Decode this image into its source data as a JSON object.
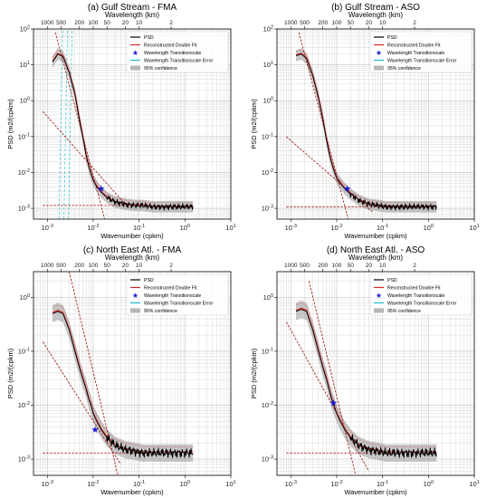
{
  "chart_data": [
    {
      "type": "line",
      "title": "(a) Gulf Stream - FMA",
      "xlabel": "Wavenumber (cpkm)",
      "ylabel": "PSD (m2/(cpkm)",
      "top_xlabel": "Wavelength (km)",
      "top_tick_labels": [
        "1000",
        "500",
        "200",
        "100",
        "50",
        "20",
        "10",
        "2"
      ],
      "top_tick_values_km": [
        1000,
        500,
        200,
        100,
        50,
        20,
        10,
        2
      ],
      "xscale": "log",
      "yscale": "log",
      "xlim": [
        0.0005,
        10
      ],
      "ylim": [
        0.0005,
        100
      ],
      "x_tick_labels": [
        "10^-3",
        "10^-2",
        "10^-1",
        "10^0",
        "10^1"
      ],
      "y_tick_labels": [
        "10^-3",
        "10^-2",
        "10^-1",
        "10^0",
        "10^1",
        "10^2"
      ],
      "grid": true,
      "legend": [
        "PSD",
        "Reconstructed Double Fit",
        "Wavelength Transitionscale",
        "Wavelength Transitionscale Error",
        "95% confidence"
      ],
      "legend_position": "top-right",
      "spectrum": {
        "x": [
          0.0013,
          0.0017,
          0.0022,
          0.003,
          0.004,
          0.005,
          0.006,
          0.007,
          0.008,
          0.009,
          0.01,
          0.012,
          0.015,
          0.02,
          0.03,
          0.05,
          0.08,
          0.12,
          0.2,
          0.4,
          0.8,
          1.5
        ],
        "y": [
          12,
          20,
          17,
          6,
          1.5,
          0.3,
          0.09,
          0.03,
          0.015,
          0.009,
          0.006,
          0.004,
          0.0028,
          0.002,
          0.0015,
          0.0013,
          0.0012,
          0.0012,
          0.0011,
          0.0011,
          0.0011,
          0.0011
        ]
      },
      "fit_steep": {
        "x": [
          0.0015,
          0.04
        ],
        "y": [
          80,
          1e-05
        ]
      },
      "fit_shallow": {
        "x": [
          0.0008,
          0.06
        ],
        "y": [
          0.5,
          0.001
        ]
      },
      "noise_floor": 0.0012,
      "transition": {
        "x": 0.015,
        "y": 0.0035
      },
      "error_lines_x": [
        0.0018,
        0.0023,
        0.0029
      ],
      "colors": {
        "psd": "#000000",
        "fit": "#d62728",
        "star": "#1a1ad9",
        "error": "#17becf",
        "confidence": "#999999",
        "fit_raw": "#ff9999"
      }
    },
    {
      "type": "line",
      "title": "(b) Gulf Stream - ASO",
      "xlabel": "Wavenumber (cpkm)",
      "ylabel": "PSD (m2/(cpkm)",
      "top_xlabel": "Wavelength (km)",
      "top_tick_labels": [
        "1000",
        "500",
        "200",
        "100",
        "50",
        "20",
        "10",
        "2"
      ],
      "top_tick_values_km": [
        1000,
        500,
        200,
        100,
        50,
        20,
        10,
        2
      ],
      "xscale": "log",
      "yscale": "log",
      "xlim": [
        0.0005,
        10
      ],
      "ylim": [
        0.0005,
        100
      ],
      "x_tick_labels": [
        "10^-3",
        "10^-2",
        "10^-1",
        "10^0",
        "10^1"
      ],
      "y_tick_labels": [
        "10^-3",
        "10^-2",
        "10^-1",
        "10^0",
        "10^1",
        "10^2"
      ],
      "grid": true,
      "legend": [
        "PSD",
        "Reconstructed Double Fit",
        "Wavelength Transitionscale",
        "Wavelength Transitionscale Error",
        "95% confidence"
      ],
      "legend_position": "top-right",
      "spectrum": {
        "x": [
          0.0013,
          0.0017,
          0.0022,
          0.003,
          0.004,
          0.005,
          0.006,
          0.007,
          0.008,
          0.009,
          0.01,
          0.012,
          0.015,
          0.02,
          0.03,
          0.05,
          0.08,
          0.12,
          0.2,
          0.4,
          0.8,
          1.5
        ],
        "y": [
          18,
          20,
          15,
          5,
          1.2,
          0.3,
          0.08,
          0.03,
          0.016,
          0.01,
          0.007,
          0.005,
          0.0035,
          0.0025,
          0.0017,
          0.0013,
          0.0012,
          0.0011,
          0.0011,
          0.0011,
          0.0011,
          0.0011
        ]
      },
      "fit_steep": {
        "x": [
          0.0015,
          0.04
        ],
        "y": [
          80,
          1e-05
        ]
      },
      "fit_shallow": {
        "x": [
          0.0008,
          0.06
        ],
        "y": [
          0.1,
          0.0008
        ]
      },
      "noise_floor": 0.0011,
      "transition": {
        "x": 0.017,
        "y": 0.0035
      },
      "error_lines_x": [],
      "colors": {
        "psd": "#000000",
        "fit": "#d62728",
        "star": "#1a1ad9",
        "error": "#17becf",
        "confidence": "#999999",
        "fit_raw": "#ff9999"
      }
    },
    {
      "type": "line",
      "title": "(c) North East Atl. - FMA",
      "xlabel": "Wavenumber (cpkm)",
      "ylabel": "PSD (m2/(cpkm)",
      "top_xlabel": "Wavelength (km)",
      "top_tick_labels": [
        "1000",
        "500",
        "200",
        "100",
        "50",
        "20",
        "10",
        "2"
      ],
      "top_tick_values_km": [
        1000,
        500,
        200,
        100,
        50,
        20,
        10,
        2
      ],
      "xscale": "log",
      "yscale": "log",
      "xlim": [
        0.0005,
        10
      ],
      "ylim": [
        0.0005,
        3
      ],
      "x_tick_labels": [
        "10^-3",
        "10^-2",
        "10^-1",
        "10^0",
        "10^1"
      ],
      "y_tick_labels": [
        "10^-3",
        "10^-2",
        "10^-1",
        "10^0"
      ],
      "grid": true,
      "legend": [
        "PSD",
        "Reconstructed Double Fit",
        "Wavelength Transitionscale",
        "Wavelength Transitionscale Error",
        "95% confidence"
      ],
      "legend_position": "top-right",
      "spectrum": {
        "x": [
          0.0013,
          0.0017,
          0.0022,
          0.003,
          0.004,
          0.005,
          0.006,
          0.007,
          0.008,
          0.009,
          0.01,
          0.012,
          0.015,
          0.02,
          0.03,
          0.05,
          0.08,
          0.12,
          0.2,
          0.4,
          0.8,
          1.5
        ],
        "y": [
          0.5,
          0.55,
          0.5,
          0.25,
          0.1,
          0.05,
          0.03,
          0.02,
          0.013,
          0.01,
          0.007,
          0.005,
          0.0035,
          0.0025,
          0.0018,
          0.0015,
          0.0014,
          0.0013,
          0.0013,
          0.0013,
          0.0013,
          0.0013
        ]
      },
      "fit_steep": {
        "x": [
          0.003,
          0.04
        ],
        "y": [
          3,
          0.0003
        ]
      },
      "fit_shallow": {
        "x": [
          0.0008,
          0.04
        ],
        "y": [
          0.15,
          0.0008
        ]
      },
      "noise_floor": 0.0013,
      "transition": {
        "x": 0.011,
        "y": 0.0035
      },
      "error_lines_x": [],
      "colors": {
        "psd": "#000000",
        "fit": "#d62728",
        "star": "#1a1ad9",
        "error": "#17becf",
        "confidence": "#999999",
        "fit_raw": "#ff9999"
      }
    },
    {
      "type": "line",
      "title": "(d) North East Atl. - ASO",
      "xlabel": "Wavenumber (cpkm)",
      "ylabel": "PSD (m2/(cpkm)",
      "top_xlabel": "Wavelength (km)",
      "top_tick_labels": [
        "1000",
        "500",
        "200",
        "100",
        "50",
        "20",
        "10",
        "2"
      ],
      "top_tick_values_km": [
        1000,
        500,
        200,
        100,
        50,
        20,
        10,
        2
      ],
      "xscale": "log",
      "yscale": "log",
      "xlim": [
        0.0005,
        10
      ],
      "ylim": [
        0.0005,
        3
      ],
      "x_tick_labels": [
        "10^-3",
        "10^-2",
        "10^-1",
        "10^0",
        "10^1"
      ],
      "y_tick_labels": [
        "10^-3",
        "10^-2",
        "10^-1",
        "10^0"
      ],
      "grid": true,
      "legend": [
        "PSD",
        "Reconstructed Double Fit",
        "Wavelength Transitionscale",
        "Wavelength Transitionscale Error",
        "95% confidence"
      ],
      "legend_position": "top-right",
      "spectrum": {
        "x": [
          0.0013,
          0.0017,
          0.0022,
          0.003,
          0.004,
          0.005,
          0.006,
          0.007,
          0.008,
          0.009,
          0.01,
          0.012,
          0.015,
          0.02,
          0.03,
          0.05,
          0.08,
          0.12,
          0.2,
          0.4,
          0.8,
          1.5
        ],
        "y": [
          0.55,
          0.6,
          0.55,
          0.25,
          0.1,
          0.05,
          0.03,
          0.018,
          0.012,
          0.009,
          0.007,
          0.005,
          0.0035,
          0.0025,
          0.0018,
          0.0015,
          0.0014,
          0.0013,
          0.0013,
          0.0013,
          0.0013,
          0.0013
        ]
      },
      "fit_steep": {
        "x": [
          0.0025,
          0.03
        ],
        "y": [
          2,
          0.0003
        ]
      },
      "fit_shallow": {
        "x": [
          0.0008,
          0.05
        ],
        "y": [
          0.35,
          0.0006
        ]
      },
      "noise_floor": 0.0013,
      "transition": {
        "x": 0.0085,
        "y": 0.011
      },
      "error_lines_x": [],
      "colors": {
        "psd": "#000000",
        "fit": "#d62728",
        "star": "#1a1ad9",
        "error": "#17becf",
        "confidence": "#999999",
        "fit_raw": "#ff9999"
      }
    }
  ]
}
